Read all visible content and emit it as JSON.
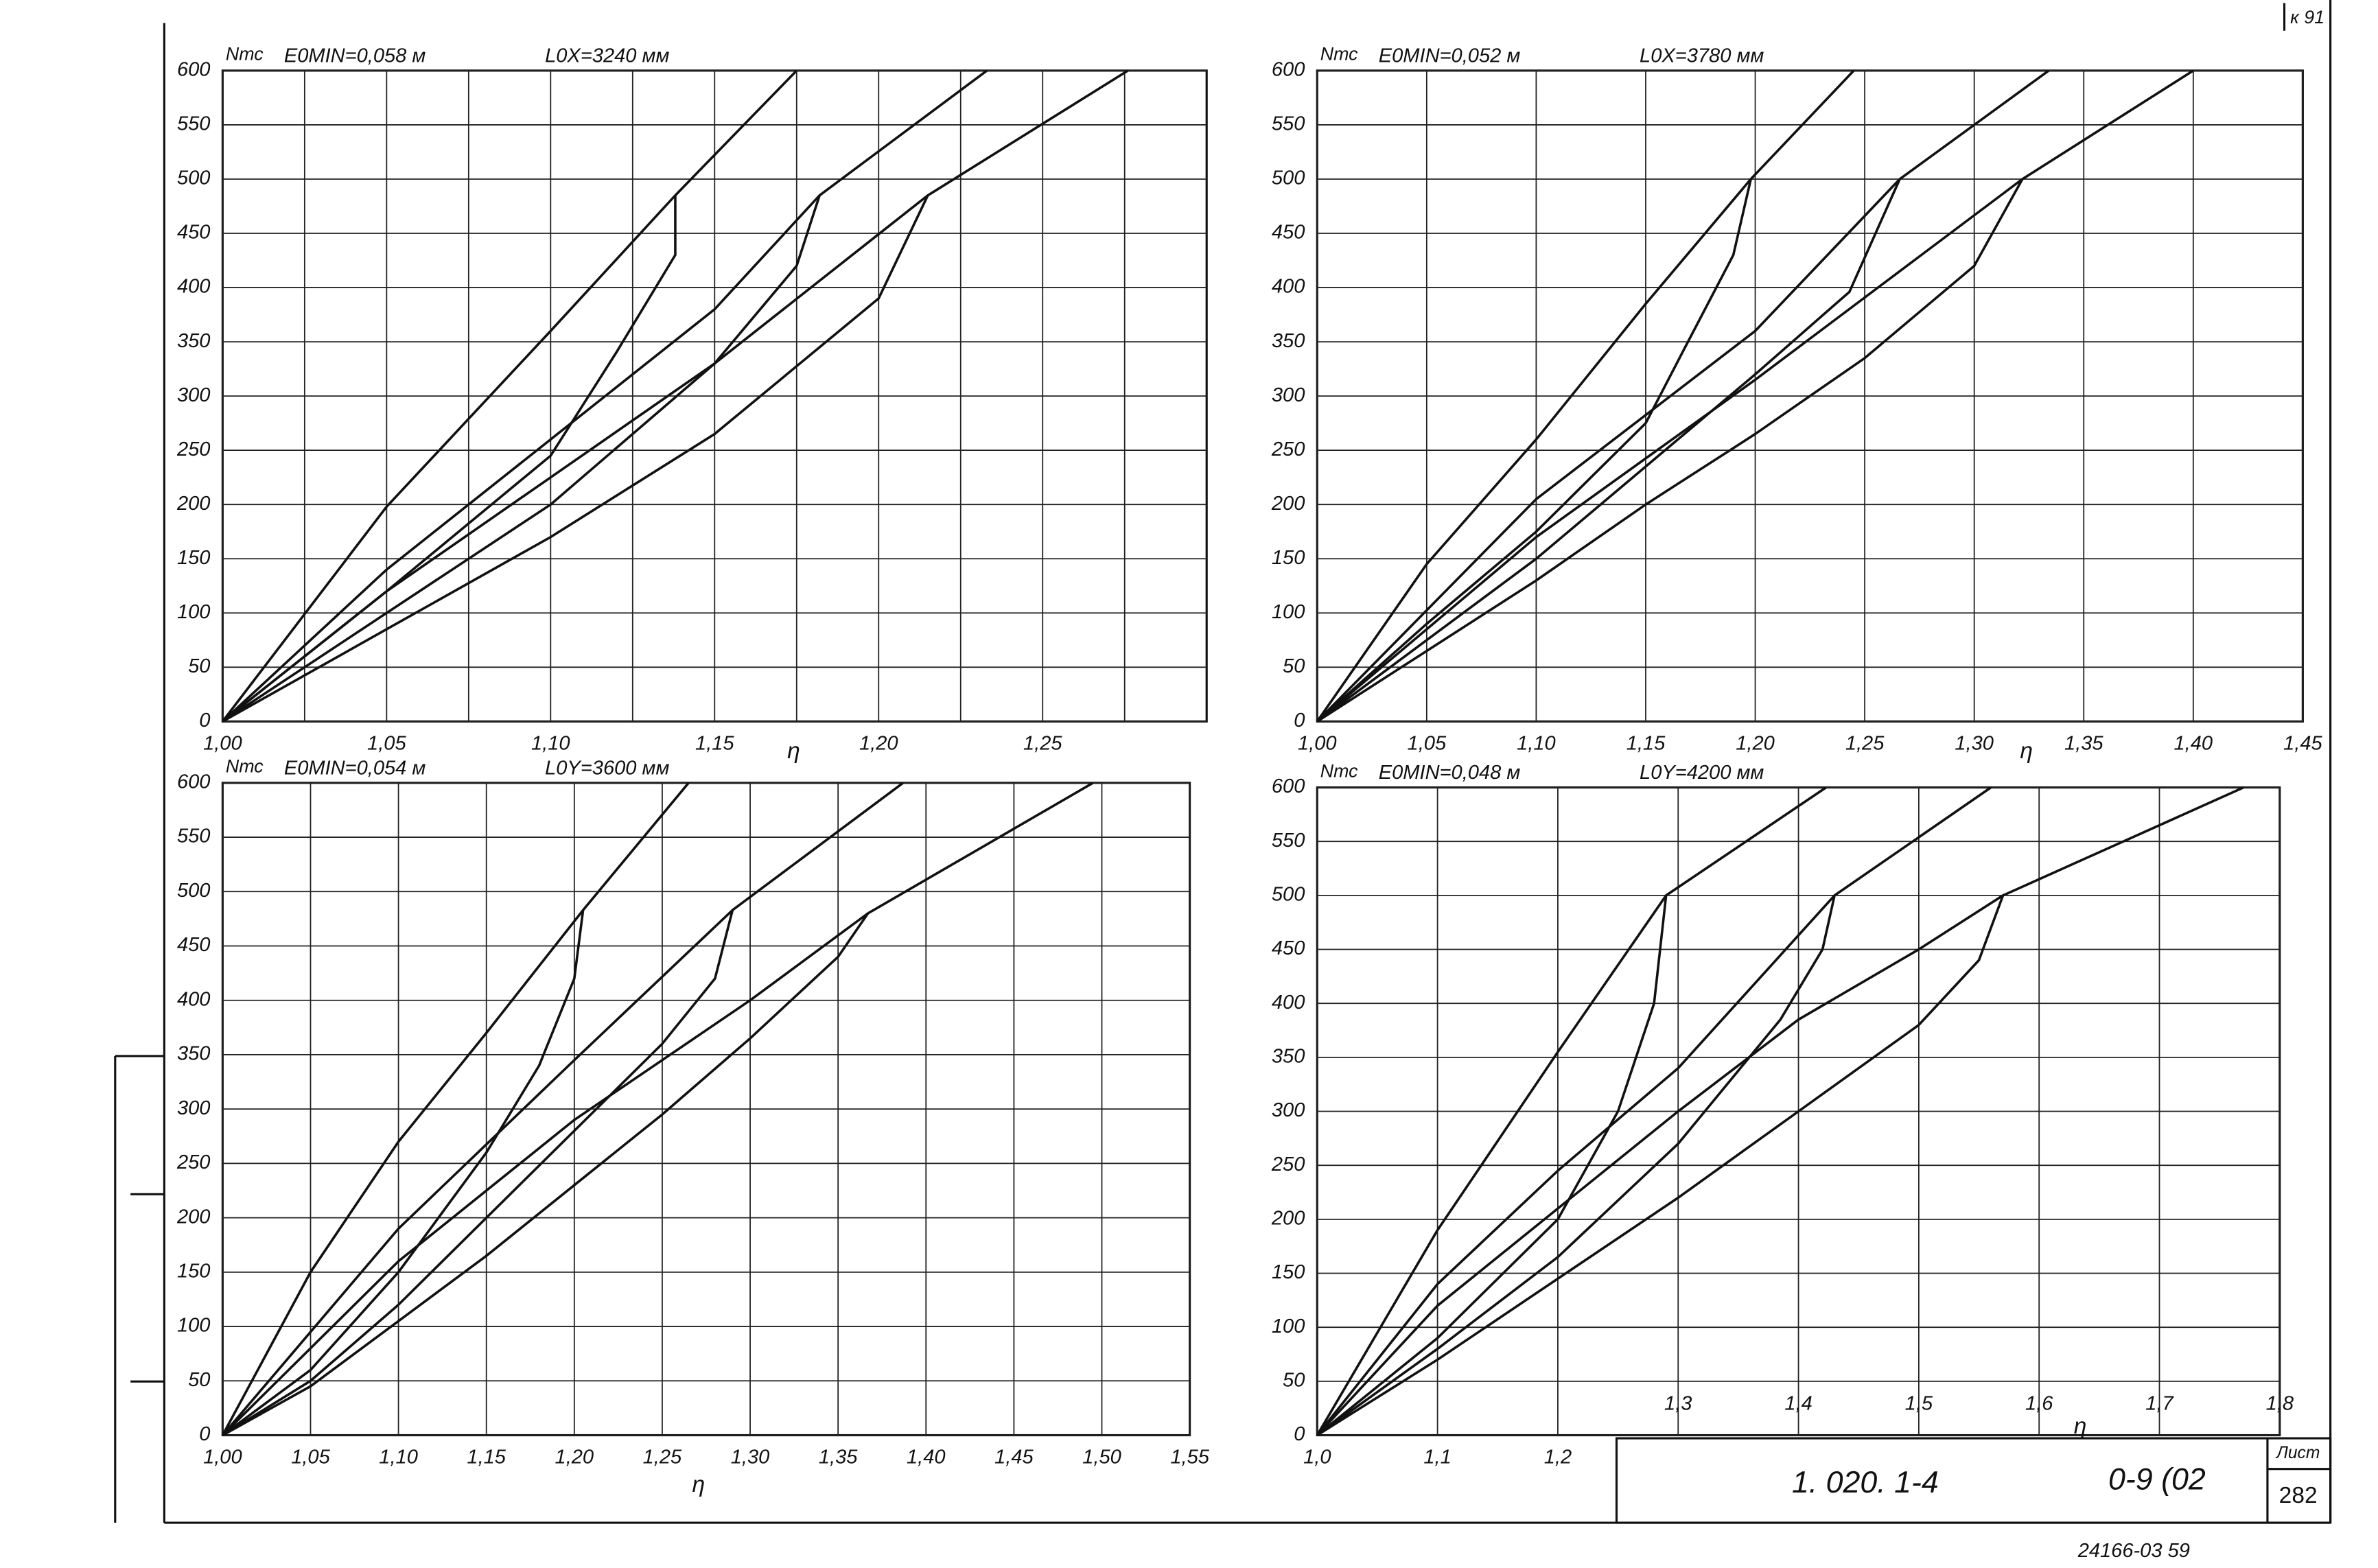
{
  "chart_data": [
    {
      "type": "line",
      "y_label": "Nтс",
      "annotations": [
        "E0MIN=0,058 м",
        "L0X=3240 мм"
      ],
      "x_label": "η",
      "xlim": [
        1.0,
        1.3
      ],
      "ylim": [
        0,
        600
      ],
      "xticks": [
        {
          "value": 1.0,
          "label": "1,00"
        },
        {
          "value": 1.05,
          "label": "1,05"
        },
        {
          "value": 1.1,
          "label": "1,10"
        },
        {
          "value": 1.15,
          "label": "1,15"
        },
        {
          "value": 1.2,
          "label": "1,20"
        },
        {
          "value": 1.25,
          "label": "1,25"
        }
      ],
      "xgrid": [
        1.025,
        1.075,
        1.125,
        1.175,
        1.225,
        1.275
      ],
      "yticks": [
        0,
        50,
        100,
        150,
        200,
        250,
        300,
        350,
        400,
        450,
        500,
        550,
        600
      ],
      "grid": true,
      "series": [
        {
          "color": "#111111",
          "x": [
            1.0,
            1.05,
            1.1,
            1.138,
            1.175
          ],
          "values": [
            0,
            198,
            360,
            485,
            600
          ]
        },
        {
          "color": "#111111",
          "x": [
            1.0,
            1.05,
            1.1,
            1.15,
            1.182,
            1.233
          ],
          "values": [
            0,
            140,
            260,
            380,
            485,
            600
          ]
        },
        {
          "color": "#111111",
          "x": [
            1.0,
            1.05,
            1.1,
            1.15,
            1.215,
            1.276
          ],
          "values": [
            0,
            120,
            225,
            330,
            485,
            600
          ]
        },
        {
          "color": "#111111",
          "x": [
            1.0,
            1.05,
            1.1,
            1.12,
            1.138,
            1.138
          ],
          "values": [
            0,
            120,
            245,
            340,
            430,
            485
          ]
        },
        {
          "color": "#111111",
          "x": [
            1.0,
            1.05,
            1.1,
            1.15,
            1.175,
            1.182
          ],
          "values": [
            0,
            100,
            200,
            330,
            420,
            485
          ]
        },
        {
          "color": "#111111",
          "x": [
            1.0,
            1.05,
            1.1,
            1.15,
            1.2,
            1.215
          ],
          "values": [
            0,
            85,
            170,
            265,
            390,
            485
          ]
        }
      ]
    },
    {
      "type": "line",
      "y_label": "Nтс",
      "annotations": [
        "E0MIN=0,052 м",
        "L0X=3780 мм"
      ],
      "x_label": "η",
      "xlim": [
        1.0,
        1.45
      ],
      "ylim": [
        0,
        600
      ],
      "xticks": [
        {
          "value": 1.0,
          "label": "1,00"
        },
        {
          "value": 1.05,
          "label": "1,05"
        },
        {
          "value": 1.1,
          "label": "1,10"
        },
        {
          "value": 1.15,
          "label": "1,15"
        },
        {
          "value": 1.2,
          "label": "1,20"
        },
        {
          "value": 1.25,
          "label": "1,25"
        },
        {
          "value": 1.3,
          "label": "1,30"
        },
        {
          "value": 1.35,
          "label": "1,35"
        },
        {
          "value": 1.4,
          "label": "1,40"
        },
        {
          "value": 1.45,
          "label": "1,45"
        }
      ],
      "yticks": [
        0,
        50,
        100,
        150,
        200,
        250,
        300,
        350,
        400,
        450,
        500,
        550,
        600
      ],
      "grid": true,
      "series": [
        {
          "color": "#111111",
          "x": [
            1.0,
            1.05,
            1.1,
            1.15,
            1.198,
            1.245
          ],
          "values": [
            0,
            145,
            260,
            385,
            500,
            600
          ]
        },
        {
          "color": "#111111",
          "x": [
            1.0,
            1.1,
            1.2,
            1.266,
            1.334
          ],
          "values": [
            0,
            205,
            360,
            500,
            600
          ]
        },
        {
          "color": "#111111",
          "x": [
            1.0,
            1.1,
            1.2,
            1.322,
            1.4
          ],
          "values": [
            0,
            170,
            315,
            500,
            600
          ]
        },
        {
          "color": "#111111",
          "x": [
            1.0,
            1.05,
            1.1,
            1.15,
            1.168,
            1.19,
            1.198
          ],
          "values": [
            0,
            90,
            175,
            275,
            345,
            430,
            500
          ]
        },
        {
          "color": "#111111",
          "x": [
            1.0,
            1.05,
            1.1,
            1.15,
            1.2,
            1.243,
            1.266
          ],
          "values": [
            0,
            75,
            150,
            235,
            320,
            396,
            500
          ]
        },
        {
          "color": "#111111",
          "x": [
            1.0,
            1.05,
            1.1,
            1.15,
            1.2,
            1.25,
            1.3,
            1.322
          ],
          "values": [
            0,
            65,
            130,
            200,
            265,
            335,
            420,
            500
          ]
        }
      ]
    },
    {
      "type": "line",
      "y_label": "Nтс",
      "annotations": [
        "E0MIN=0,054 м",
        "L0Y=3600 мм"
      ],
      "x_label": "η",
      "xlim": [
        1.0,
        1.55
      ],
      "ylim": [
        0,
        600
      ],
      "xticks": [
        {
          "value": 1.0,
          "label": "1,00"
        },
        {
          "value": 1.05,
          "label": "1,05"
        },
        {
          "value": 1.1,
          "label": "1,10"
        },
        {
          "value": 1.15,
          "label": "1,15"
        },
        {
          "value": 1.2,
          "label": "1,20"
        },
        {
          "value": 1.25,
          "label": "1,25"
        },
        {
          "value": 1.3,
          "label": "1,30"
        },
        {
          "value": 1.35,
          "label": "1,35"
        },
        {
          "value": 1.4,
          "label": "1,40"
        },
        {
          "value": 1.45,
          "label": "1,45"
        },
        {
          "value": 1.5,
          "label": "1,50"
        },
        {
          "value": 1.55,
          "label": "1,55"
        }
      ],
      "yticks": [
        0,
        50,
        100,
        150,
        200,
        250,
        300,
        350,
        400,
        450,
        500,
        550,
        600
      ],
      "grid": true,
      "series": [
        {
          "color": "#111111",
          "x": [
            1.0,
            1.05,
            1.1,
            1.15,
            1.205,
            1.265
          ],
          "values": [
            0,
            150,
            270,
            370,
            483,
            600
          ]
        },
        {
          "color": "#111111",
          "x": [
            1.0,
            1.1,
            1.2,
            1.29,
            1.387
          ],
          "values": [
            0,
            190,
            345,
            483,
            600
          ]
        },
        {
          "color": "#111111",
          "x": [
            1.0,
            1.1,
            1.2,
            1.3,
            1.367,
            1.495
          ],
          "values": [
            0,
            160,
            290,
            400,
            480,
            600
          ]
        },
        {
          "color": "#111111",
          "x": [
            1.0,
            1.05,
            1.1,
            1.15,
            1.18,
            1.2,
            1.205
          ],
          "values": [
            0,
            60,
            150,
            260,
            340,
            420,
            483
          ]
        },
        {
          "color": "#111111",
          "x": [
            1.0,
            1.05,
            1.1,
            1.15,
            1.2,
            1.25,
            1.28,
            1.29
          ],
          "values": [
            0,
            50,
            120,
            200,
            280,
            360,
            420,
            483
          ]
        },
        {
          "color": "#111111",
          "x": [
            1.0,
            1.05,
            1.1,
            1.15,
            1.2,
            1.25,
            1.3,
            1.35,
            1.367
          ],
          "values": [
            0,
            45,
            105,
            165,
            230,
            295,
            365,
            440,
            480
          ]
        }
      ]
    },
    {
      "type": "line",
      "y_label": "Nтс",
      "annotations": [
        "E0MIN=0,048 м",
        "L0Y=4200 мм"
      ],
      "x_label": "η",
      "xlim": [
        1.0,
        1.8
      ],
      "ylim": [
        0,
        600
      ],
      "xticks": [
        {
          "value": 1.0,
          "label": "1,0"
        },
        {
          "value": 1.1,
          "label": "1,1"
        },
        {
          "value": 1.2,
          "label": "1,2"
        },
        {
          "value": 1.3,
          "label": "1,3"
        },
        {
          "value": 1.4,
          "label": "1,4"
        },
        {
          "value": 1.5,
          "label": "1,5"
        },
        {
          "value": 1.6,
          "label": "1,6"
        },
        {
          "value": 1.7,
          "label": "1,7"
        },
        {
          "value": 1.8,
          "label": "1,8"
        }
      ],
      "yticks": [
        0,
        50,
        100,
        150,
        200,
        250,
        300,
        350,
        400,
        450,
        500,
        550,
        600
      ],
      "grid": true,
      "series": [
        {
          "color": "#111111",
          "x": [
            1.0,
            1.1,
            1.2,
            1.29,
            1.423
          ],
          "values": [
            0,
            190,
            355,
            500,
            600
          ]
        },
        {
          "color": "#111111",
          "x": [
            1.0,
            1.1,
            1.2,
            1.3,
            1.43,
            1.56
          ],
          "values": [
            0,
            140,
            245,
            340,
            500,
            600
          ]
        },
        {
          "color": "#111111",
          "x": [
            1.0,
            1.1,
            1.2,
            1.3,
            1.4,
            1.5,
            1.57,
            1.77
          ],
          "values": [
            0,
            120,
            210,
            300,
            385,
            450,
            500,
            600
          ]
        },
        {
          "color": "#111111",
          "x": [
            1.0,
            1.1,
            1.2,
            1.25,
            1.28,
            1.29
          ],
          "values": [
            0,
            90,
            200,
            300,
            400,
            500
          ]
        },
        {
          "color": "#111111",
          "x": [
            1.0,
            1.1,
            1.2,
            1.3,
            1.385,
            1.42,
            1.43
          ],
          "values": [
            0,
            80,
            165,
            270,
            385,
            450,
            500
          ]
        },
        {
          "color": "#111111",
          "x": [
            1.0,
            1.1,
            1.2,
            1.3,
            1.4,
            1.5,
            1.55,
            1.57
          ],
          "values": [
            0,
            70,
            145,
            220,
            300,
            380,
            440,
            500
          ]
        }
      ]
    }
  ],
  "stamp": {
    "designation": "1. 020. 1-4",
    "code": "0-9 (02",
    "sheet_label": "Лист",
    "sheet": "282",
    "inventory": "24166-03  59",
    "corner": "к 91"
  }
}
